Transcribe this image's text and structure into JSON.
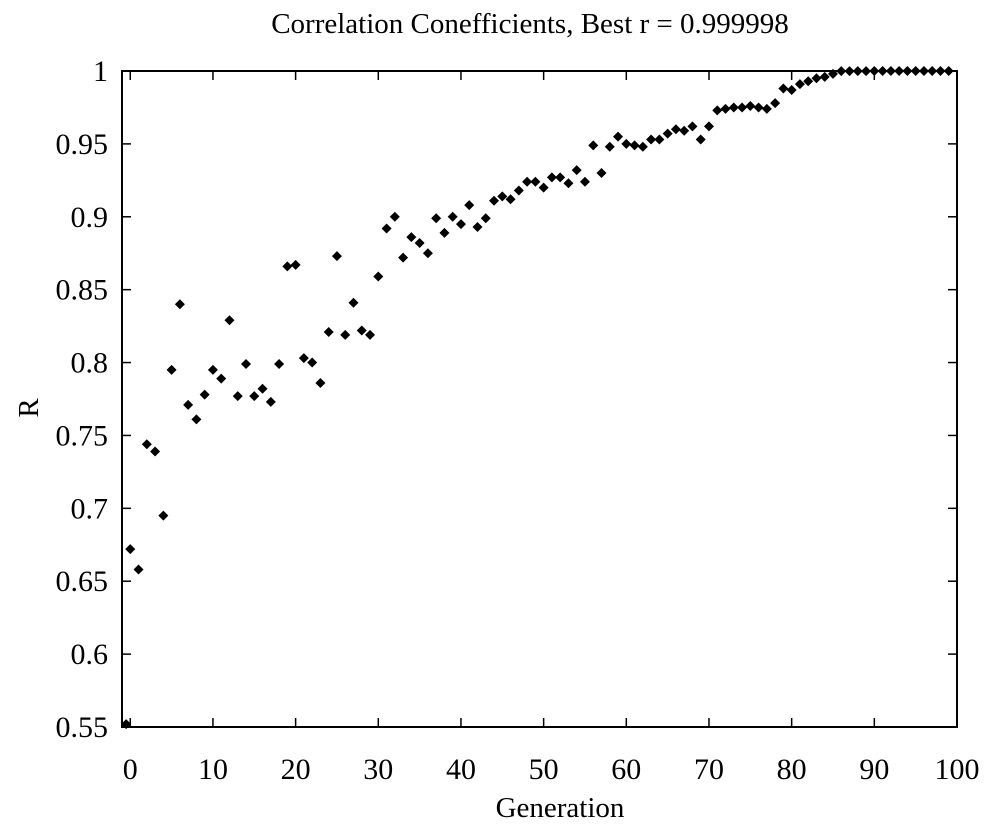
{
  "chart_data": {
    "type": "scatter",
    "title": "Correlation Conefficients, Best r = 0.999998",
    "xlabel": "Generation",
    "ylabel": "R",
    "xlim": [
      -1,
      100
    ],
    "ylim": [
      0.55,
      1.0
    ],
    "xticks": [
      0,
      10,
      20,
      30,
      40,
      50,
      60,
      70,
      80,
      90,
      100
    ],
    "yticks": [
      0.55,
      0.6,
      0.65,
      0.7,
      0.75,
      0.8,
      0.85,
      0.9,
      0.95,
      1.0
    ],
    "xtick_labels": [
      "0",
      "10",
      "20",
      "30",
      "40",
      "50",
      "60",
      "70",
      "80",
      "90",
      "100"
    ],
    "ytick_labels": [
      "0.55",
      "0.6",
      "0.65",
      "0.7",
      "0.75",
      "0.8",
      "0.85",
      "0.9",
      "0.95",
      "1"
    ],
    "grid": false,
    "marker": "diamond",
    "marker_color": "#000000",
    "series": [
      {
        "x": [
          -0.5,
          0,
          1,
          2,
          3,
          4,
          5,
          6,
          7,
          8,
          9,
          10,
          11,
          12,
          13,
          14,
          15,
          16,
          17,
          18,
          19,
          20,
          21,
          22,
          23,
          24,
          25,
          26,
          27,
          28,
          29,
          30,
          31,
          32,
          33,
          34,
          35,
          36,
          37,
          38,
          39,
          40,
          41,
          42,
          43,
          44,
          45,
          46,
          47,
          48,
          49,
          50,
          51,
          52,
          53,
          54,
          55,
          56,
          57,
          58,
          59,
          60,
          61,
          62,
          63,
          64,
          65,
          66,
          67,
          68,
          69,
          70,
          71,
          72,
          73,
          74,
          75,
          76,
          77,
          78,
          79,
          80,
          81,
          82,
          83,
          84,
          85,
          86,
          87,
          88,
          89,
          90,
          91,
          92,
          93,
          94,
          95,
          96,
          97,
          98,
          99
        ],
        "y": [
          0.552,
          0.672,
          0.658,
          0.744,
          0.739,
          0.695,
          0.795,
          0.84,
          0.771,
          0.761,
          0.778,
          0.795,
          0.789,
          0.829,
          0.777,
          0.799,
          0.777,
          0.782,
          0.773,
          0.799,
          0.866,
          0.867,
          0.803,
          0.8,
          0.786,
          0.821,
          0.873,
          0.819,
          0.841,
          0.822,
          0.819,
          0.859,
          0.892,
          0.9,
          0.872,
          0.886,
          0.882,
          0.875,
          0.899,
          0.889,
          0.9,
          0.895,
          0.908,
          0.893,
          0.899,
          0.911,
          0.914,
          0.912,
          0.918,
          0.924,
          0.924,
          0.92,
          0.927,
          0.927,
          0.923,
          0.932,
          0.924,
          0.949,
          0.93,
          0.948,
          0.955,
          0.95,
          0.949,
          0.948,
          0.953,
          0.953,
          0.957,
          0.96,
          0.959,
          0.962,
          0.953,
          0.962,
          0.973,
          0.974,
          0.975,
          0.975,
          0.976,
          0.975,
          0.974,
          0.978,
          0.988,
          0.987,
          0.991,
          0.993,
          0.995,
          0.996,
          0.998,
          0.9999,
          0.9999,
          0.9999,
          0.9999,
          0.99999,
          0.99999,
          0.99999,
          0.99999,
          0.99999,
          0.99999,
          0.99999,
          0.99999,
          0.99999,
          0.999998
        ]
      }
    ]
  }
}
